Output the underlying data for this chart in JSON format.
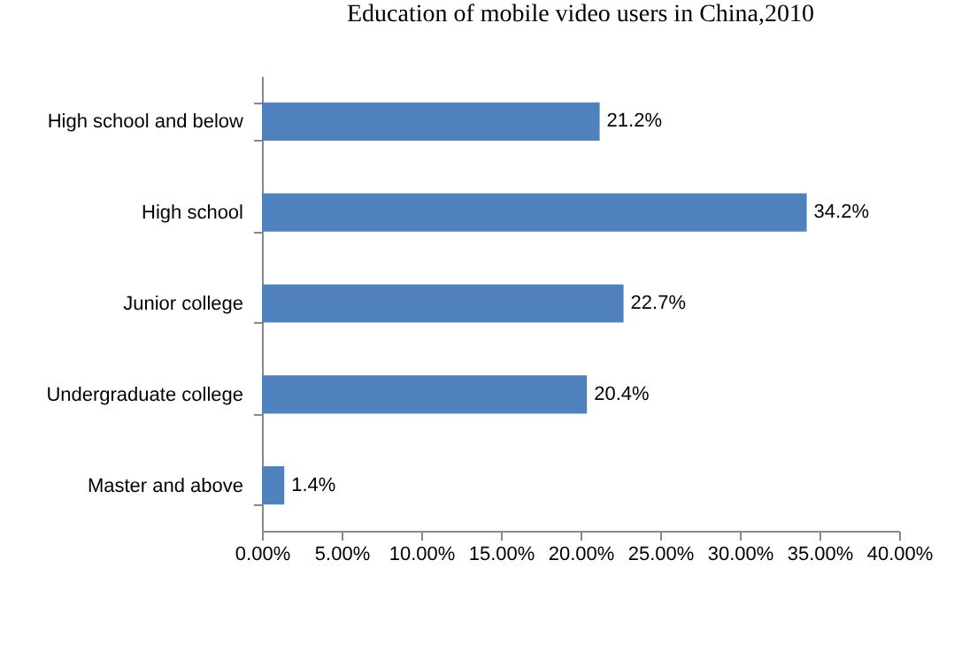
{
  "chart_data": {
    "type": "bar",
    "orientation": "horizontal",
    "title": "Education of mobile video users in China,2010",
    "categories": [
      "High  school and below",
      "High  school",
      "Junior college",
      "Undergraduate college",
      "Master and above"
    ],
    "values": [
      21.2,
      34.2,
      22.7,
      20.4,
      1.4
    ],
    "value_labels": [
      "21.2%",
      "34.2%",
      "22.7%",
      "20.4%",
      "1.4%"
    ],
    "color": "#4f81bd",
    "xlim": [
      0,
      40
    ],
    "xticks": [
      {
        "value": 0,
        "label": "0.00%"
      },
      {
        "value": 5,
        "label": "5.00%"
      },
      {
        "value": 10,
        "label": "10.00%"
      },
      {
        "value": 15,
        "label": "15.00%"
      },
      {
        "value": 20,
        "label": "20.00%"
      },
      {
        "value": 25,
        "label": "25.00%"
      },
      {
        "value": 30,
        "label": "30.00%"
      },
      {
        "value": 35,
        "label": "35.00%"
      },
      {
        "value": 40,
        "label": "40.00%"
      }
    ],
    "grid": false
  }
}
